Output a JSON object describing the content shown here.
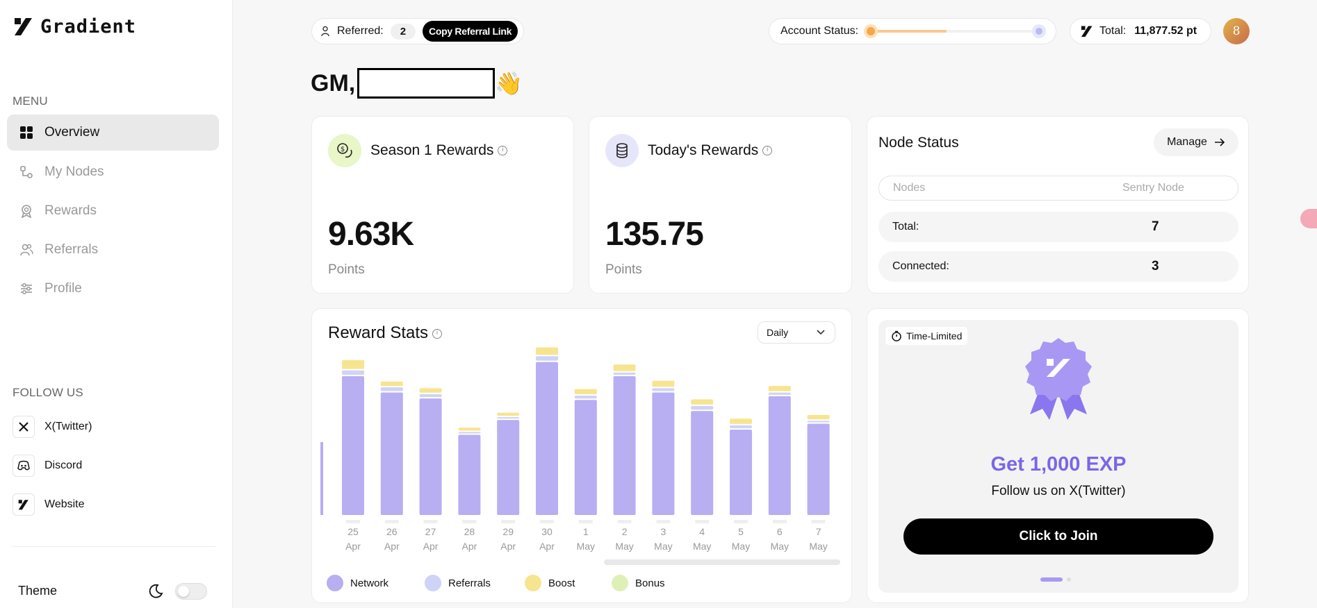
{
  "app": {
    "name": "Gradient"
  },
  "sidebar": {
    "menu_title": "MENU",
    "items": [
      {
        "label": "Overview",
        "icon": "grid-icon"
      },
      {
        "label": "My Nodes",
        "icon": "nodes-icon"
      },
      {
        "label": "Rewards",
        "icon": "rewards-icon"
      },
      {
        "label": "Referrals",
        "icon": "users-icon"
      },
      {
        "label": "Profile",
        "icon": "sliders-icon"
      }
    ],
    "follow_title": "FOLLOW US",
    "follow": [
      {
        "label": "X(Twitter)",
        "icon": "x-icon"
      },
      {
        "label": "Discord",
        "icon": "discord-icon"
      },
      {
        "label": "Website",
        "icon": "gradient-icon"
      }
    ],
    "theme_label": "Theme"
  },
  "topbar": {
    "referred_label": "Referred:",
    "referred_count": "2",
    "copy_label": "Copy Referral Link",
    "account_status_label": "Account Status:",
    "account_status_progress": 0.45,
    "total_label": "Total:",
    "total_value": "11,877.52 pt",
    "avatar_text": "8"
  },
  "greeting": {
    "text": "GM,",
    "emoji": "👋"
  },
  "season_card": {
    "title": "Season 1 Rewards",
    "value": "9.63K",
    "unit": "Points"
  },
  "today_card": {
    "title": "Today's Rewards",
    "value": "135.75",
    "unit": "Points"
  },
  "node_status": {
    "title": "Node Status",
    "manage_label": "Manage",
    "tabs": [
      "Nodes",
      "Sentry Node"
    ],
    "total_label": "Total:",
    "total_value": "7",
    "connected_label": "Connected:",
    "connected_value": "3"
  },
  "reward_stats": {
    "title": "Reward Stats",
    "period": "Daily"
  },
  "chart_data": {
    "type": "bar",
    "title": "Reward Stats",
    "stacked": true,
    "categories": [
      "25 Apr",
      "26 Apr",
      "27 Apr",
      "28 Apr",
      "29 Apr",
      "30 Apr",
      "1 May",
      "2 May",
      "3 May",
      "4 May",
      "5 May",
      "6 May",
      "7 May"
    ],
    "tick_day": [
      "25",
      "26",
      "27",
      "28",
      "29",
      "30",
      "1",
      "2",
      "3",
      "4",
      "5",
      "6",
      "7"
    ],
    "tick_month": [
      "Apr",
      "Apr",
      "Apr",
      "Apr",
      "Apr",
      "Apr",
      "May",
      "May",
      "May",
      "May",
      "May",
      "May",
      "May"
    ],
    "series": [
      {
        "name": "Network",
        "color": "#b8aef2",
        "values": [
          187,
          165,
          157,
          108,
          128,
          206,
          155,
          187,
          165,
          140,
          115,
          160,
          123
        ]
      },
      {
        "name": "Referrals",
        "color": "#cfd3f7",
        "values": [
          6,
          5,
          4,
          2,
          2,
          6,
          4,
          3,
          4,
          5,
          4,
          3,
          2
        ]
      },
      {
        "name": "Boost",
        "color": "#f7e48f",
        "values": [
          12,
          6,
          6,
          4,
          4,
          10,
          7,
          9,
          8,
          7,
          7,
          7,
          6
        ]
      },
      {
        "name": "Bonus",
        "color": "#dff0b6",
        "values": [
          0,
          0,
          0,
          0,
          0,
          0,
          0,
          0,
          0,
          0,
          0,
          0,
          0
        ]
      }
    ],
    "ylim": [
      0,
      230
    ]
  },
  "promo": {
    "badge": "Time-Limited",
    "headline": "Get 1,000 EXP",
    "subtext": "Follow us on X(Twitter)",
    "cta": "Click to Join"
  }
}
